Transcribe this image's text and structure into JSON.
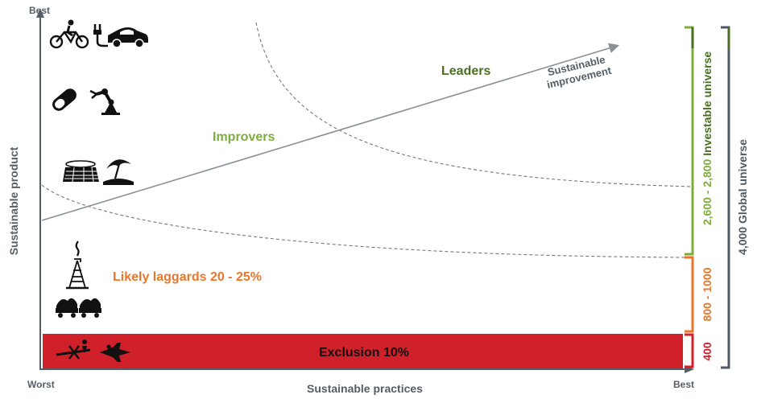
{
  "axes": {
    "y_top_label": "Best",
    "y_title": "Sustainable product",
    "x_left_label": "Worst",
    "x_right_label": "Best",
    "x_title": "Sustainable practices"
  },
  "zones": {
    "leaders": "Leaders",
    "improvers": "Improvers",
    "laggards": "Likely laggards 20 - 25%",
    "exclusion": "Exclusion 10%"
  },
  "arrow_label": {
    "line1": "Sustainable",
    "line2": "improvement"
  },
  "brackets": {
    "investable_count": "2,600 - 2,800",
    "investable_label": " Investable universe",
    "laggard_count": "800 - 1000",
    "excluded_count": "400",
    "global_label": "4,000 Global universe"
  },
  "colors": {
    "leaders_green": "#4a6e22",
    "improvers_green": "#7fad3c",
    "laggard_orange": "#e8762b",
    "exclusion_red": "#d0202a",
    "axis_gray": "#555e66",
    "global_gray": "#505a64"
  },
  "icons": {
    "row1": [
      "bicycle-icon",
      "electric-car-icon"
    ],
    "row2": [
      "pill-icon",
      "robot-arm-icon"
    ],
    "row3": [
      "solar-panel-icon",
      "beach-umbrella-icon"
    ],
    "row4": [
      "oil-rig-icon"
    ],
    "row5": [
      "coal-cart-icon"
    ],
    "row6": [
      "weapon-icon",
      "fighter-jet-icon"
    ]
  }
}
